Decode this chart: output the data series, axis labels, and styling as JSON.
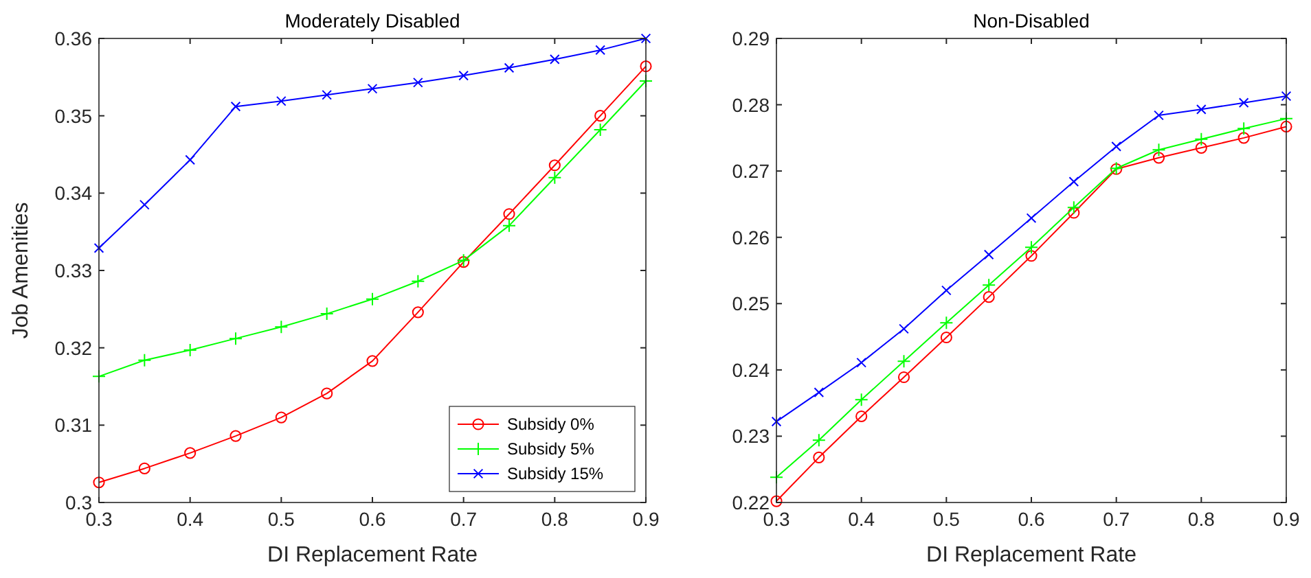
{
  "chart_data": [
    {
      "type": "line",
      "title": "Moderately Disabled",
      "xlabel": "DI Replacement Rate",
      "ylabel": "Job Amenities",
      "x": [
        0.3,
        0.35,
        0.4,
        0.45,
        0.5,
        0.55,
        0.6,
        0.65,
        0.7,
        0.75,
        0.8,
        0.85,
        0.9
      ],
      "xlim": [
        0.3,
        0.9
      ],
      "xticks": [
        0.3,
        0.4,
        0.5,
        0.6,
        0.7,
        0.8,
        0.9
      ],
      "ylim": [
        0.3,
        0.36
      ],
      "yticks": [
        0.3,
        0.31,
        0.32,
        0.33,
        0.34,
        0.35,
        0.36
      ],
      "grid": false,
      "legend": "bottom right",
      "line_style": "solid",
      "series": [
        {
          "name": "Subsidy 0%",
          "color": "#ff0000",
          "marker": "circle",
          "values": [
            0.3026,
            0.3044,
            0.3064,
            0.3086,
            0.311,
            0.3141,
            0.3183,
            0.3246,
            0.3311,
            0.3373,
            0.3436,
            0.35,
            0.3564
          ]
        },
        {
          "name": "Subsidy 5%",
          "color": "#00ff00",
          "marker": "cross",
          "values": [
            0.3163,
            0.3184,
            0.3197,
            0.3212,
            0.3227,
            0.3244,
            0.3263,
            0.3286,
            0.3313,
            0.3358,
            0.342,
            0.3482,
            0.3545
          ]
        },
        {
          "name": "Subsidy 15%",
          "color": "#0000ff",
          "marker": "cross",
          "values": [
            0.3329,
            0.3385,
            0.3443,
            0.3512,
            0.3519,
            0.3527,
            0.3535,
            0.3543,
            0.3552,
            0.3562,
            0.3573,
            0.3585,
            0.36
          ]
        }
      ]
    },
    {
      "type": "line",
      "title": "Non-Disabled",
      "xlabel": "DI Replacement Rate",
      "x": [
        0.3,
        0.35,
        0.4,
        0.45,
        0.5,
        0.55,
        0.6,
        0.65,
        0.7,
        0.75,
        0.8,
        0.85,
        0.9
      ],
      "xlim": [
        0.3,
        0.9
      ],
      "xticks": [
        0.3,
        0.4,
        0.5,
        0.6,
        0.7,
        0.8,
        0.9
      ],
      "ylim": [
        0.22,
        0.29
      ],
      "yticks": [
        0.22,
        0.23,
        0.24,
        0.25,
        0.26,
        0.27,
        0.28,
        0.29
      ],
      "grid": false,
      "legend": false,
      "line_style": "solid",
      "series": [
        {
          "color": "#ff0000",
          "marker": "circle",
          "values": [
            0.2202,
            0.2268,
            0.233,
            0.2389,
            0.2449,
            0.251,
            0.2572,
            0.2637,
            0.2703,
            0.272,
            0.2735,
            0.275,
            0.2767
          ]
        },
        {
          "color": "#00ff00",
          "marker": "cross",
          "values": [
            0.2238,
            0.2294,
            0.2355,
            0.2413,
            0.2471,
            0.2528,
            0.2585,
            0.2645,
            0.2704,
            0.2732,
            0.2748,
            0.2764,
            0.2779
          ]
        },
        {
          "color": "#0000ff",
          "marker": "cross",
          "values": [
            0.2322,
            0.2366,
            0.2411,
            0.2462,
            0.252,
            0.2574,
            0.2629,
            0.2684,
            0.2737,
            0.2784,
            0.2793,
            0.2803,
            0.2813
          ]
        }
      ]
    }
  ]
}
